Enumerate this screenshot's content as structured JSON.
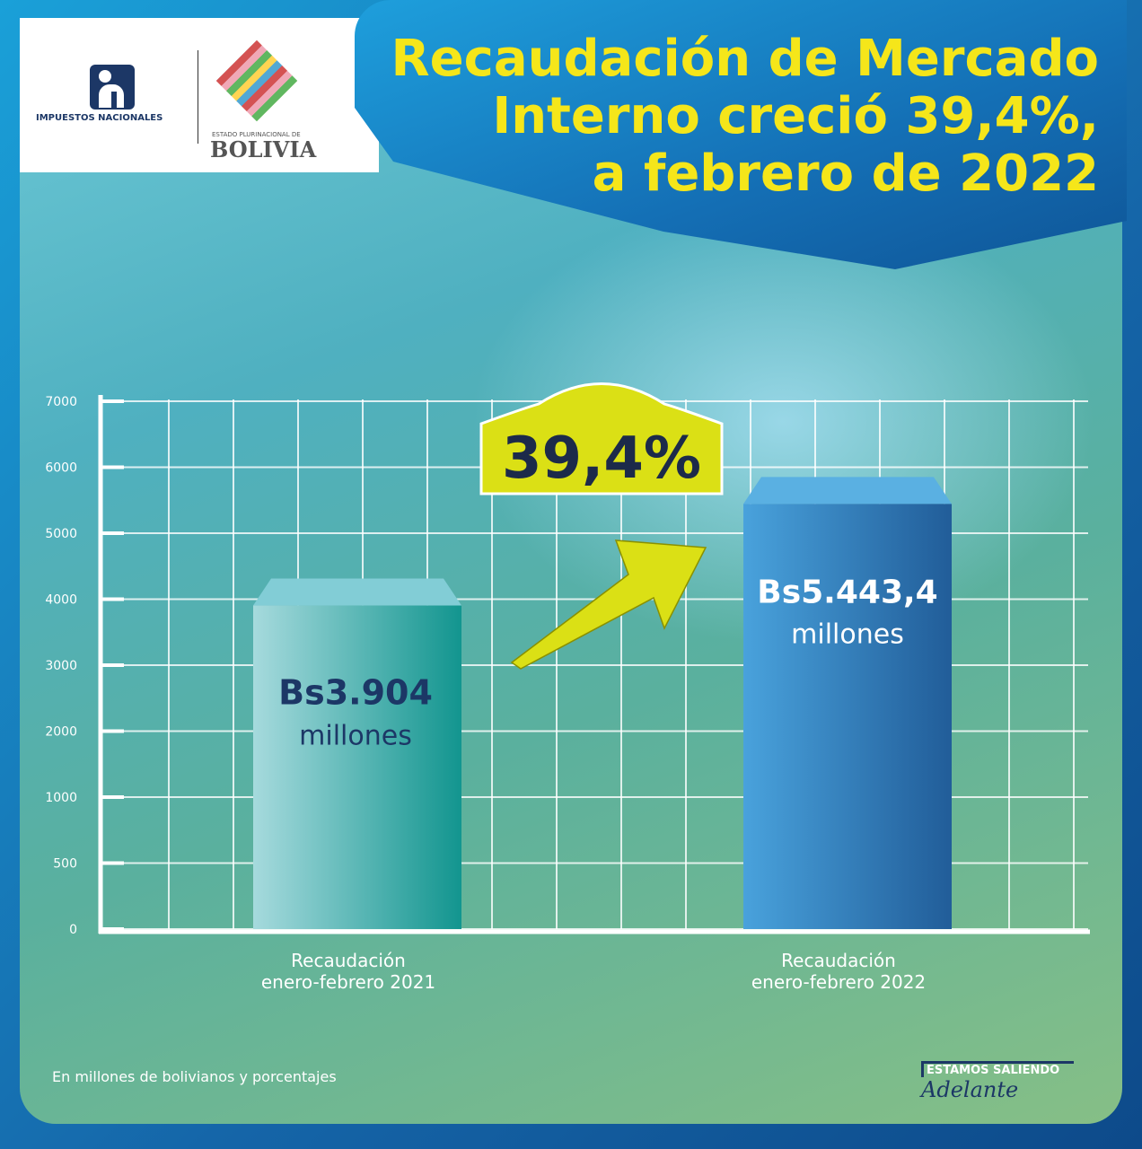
{
  "header": {
    "title_lines": [
      "Recaudación de Mercado",
      "Interno creció 39,4%,",
      "a febrero de 2022"
    ]
  },
  "logos": {
    "impuestos": "IMPUESTOS NACIONALES",
    "bolivia_small": "ESTADO PLURINACIONAL DE",
    "bolivia": "BOLIVIA",
    "campaign_top": "ESTAMOS SALIENDO",
    "campaign_bottom": "Adelante"
  },
  "footnote": "En millones de bolivianos y porcentajes",
  "chart_data": {
    "type": "bar",
    "categories": [
      "Recaudación enero-febrero 2021",
      "Recaudación enero-febrero 2022"
    ],
    "category_lines": [
      [
        "Recaudación",
        "enero-febrero 2021"
      ],
      [
        "Recaudación",
        "enero-febrero 2022"
      ]
    ],
    "values": [
      3904,
      5443.4
    ],
    "data_labels": [
      [
        "Bs3.904",
        "millones"
      ],
      [
        "Bs5.443,4",
        "millones"
      ]
    ],
    "y_ticks": [
      0,
      500,
      1000,
      2000,
      3000,
      4000,
      5000,
      6000,
      7000
    ],
    "ylim": [
      0,
      7000
    ],
    "grid": true,
    "annotation": "39,4%",
    "colors": {
      "bar1": "#5fc0c6",
      "bar2": "#3a8fd0",
      "title": "#f5e61a",
      "badge": "#dbe015"
    }
  }
}
